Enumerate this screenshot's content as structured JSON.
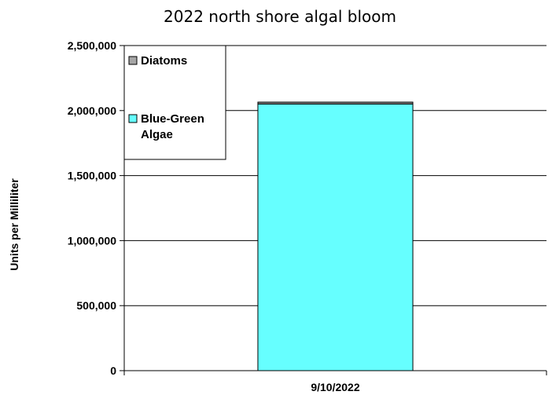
{
  "chart_data": {
    "type": "bar",
    "stacked": true,
    "title": "2022 north shore algal bloom",
    "xlabel": "",
    "ylabel": "Units per Milliliter",
    "categories": [
      "9/10/2022"
    ],
    "ylim": [
      0,
      2500000
    ],
    "yticks": [
      "0",
      "500,000",
      "1,000,000",
      "1,500,000",
      "2,000,000",
      "2,500,000"
    ],
    "ytick_values": [
      0,
      500000,
      1000000,
      1500000,
      2000000,
      2500000
    ],
    "grid": true,
    "legend_position": "top-left",
    "series": [
      {
        "name": "Blue-Green Algae",
        "values": [
          2050000
        ],
        "color": "#66ffff"
      },
      {
        "name": "Diatoms",
        "values": [
          15000
        ],
        "color": "#808080"
      }
    ],
    "legend": {
      "items": [
        {
          "label_lines": [
            "Diatoms"
          ],
          "color": "#a6a6a6"
        },
        {
          "label_lines": [
            "Blue-Green",
            "Algae"
          ],
          "color": "#66ffff"
        }
      ]
    }
  }
}
